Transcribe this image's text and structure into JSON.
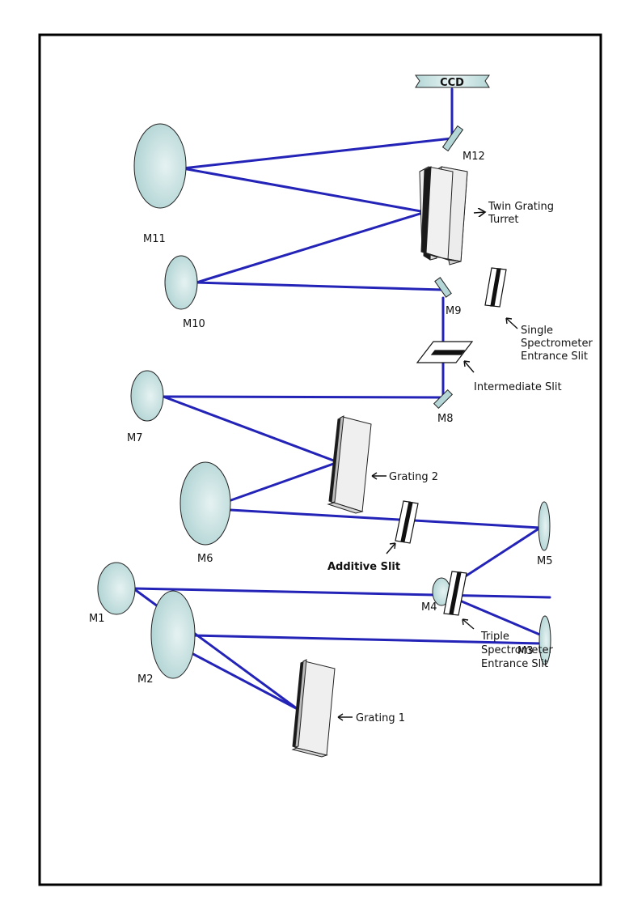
{
  "colors": {
    "beam": "#2323b8",
    "mirror_fill": "#b4d6d6",
    "grating_fill": "#e8e8e8",
    "frame": "#000000"
  },
  "labels": {
    "ccd": "CCD",
    "m1": "M1",
    "m2": "M2",
    "m3": "M3",
    "m4": "M4",
    "m5": "M5",
    "m6": "M6",
    "m7": "M7",
    "m8": "M8",
    "m9": "M9",
    "m10": "M10",
    "m11": "M11",
    "m12": "M12",
    "twin_grating_turret": [
      "Twin Grating",
      "Turret"
    ],
    "single_spectrometer_entrance_slit": [
      "Single",
      "Spectrometer",
      "Entrance Slit"
    ],
    "intermediate_slit": "Intermediate Slit",
    "grating_2": "Grating 2",
    "additive_slit": "Additive Slit",
    "grating_1": "Grating 1",
    "triple_spectrometer_entrance_slit": [
      "Triple",
      "Spectrometer",
      "Entrance Slit"
    ]
  }
}
